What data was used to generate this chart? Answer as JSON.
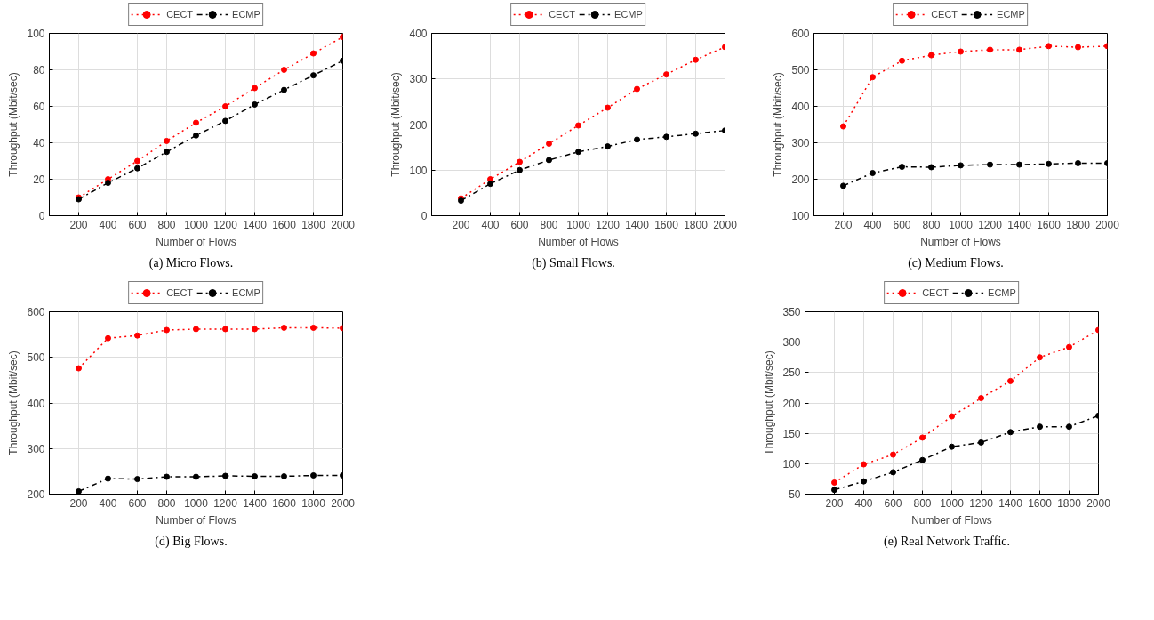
{
  "chart_data": [
    {
      "type": "line",
      "title": "(a) Micro Flows.",
      "xlabel": "Number of Flows",
      "ylabel": "Throughput (Mbit/sec)",
      "x": [
        200,
        400,
        600,
        800,
        1000,
        1200,
        1400,
        1600,
        1800,
        2000
      ],
      "xlim": [
        0,
        2000
      ],
      "xticks": [
        200,
        400,
        600,
        800,
        1000,
        1200,
        1400,
        1600,
        1800,
        2000
      ],
      "ylim": [
        0,
        100
      ],
      "yticks": [
        0,
        20,
        40,
        60,
        80,
        100
      ],
      "grid": true,
      "legend": "top",
      "marker": "circle",
      "series": [
        {
          "name": "CECT",
          "color": "#ff0000",
          "line_style": "dotted",
          "values": [
            10,
            20,
            30,
            41,
            51,
            60,
            70,
            80,
            89,
            98
          ]
        },
        {
          "name": "ECMP",
          "color": "#000000",
          "line_style": "dashdot",
          "values": [
            9,
            18,
            26,
            35,
            44,
            52,
            61,
            69,
            77,
            85
          ]
        }
      ]
    },
    {
      "type": "line",
      "title": "(b) Small Flows.",
      "xlabel": "Number of Flows",
      "ylabel": "Throughput (Mbit/sec)",
      "x": [
        200,
        400,
        600,
        800,
        1000,
        1200,
        1400,
        1600,
        1800,
        2000
      ],
      "xlim": [
        0,
        2000
      ],
      "xticks": [
        200,
        400,
        600,
        800,
        1000,
        1200,
        1400,
        1600,
        1800,
        2000
      ],
      "ylim": [
        0,
        400
      ],
      "yticks": [
        0,
        100,
        200,
        300,
        400
      ],
      "grid": true,
      "legend": "top",
      "marker": "circle",
      "series": [
        {
          "name": "CECT",
          "color": "#ff0000",
          "line_style": "dotted",
          "values": [
            38,
            80,
            118,
            158,
            198,
            237,
            278,
            310,
            342,
            370
          ]
        },
        {
          "name": "ECMP",
          "color": "#000000",
          "line_style": "dashdot",
          "values": [
            33,
            70,
            100,
            122,
            140,
            152,
            167,
            173,
            180,
            187
          ]
        }
      ]
    },
    {
      "type": "line",
      "title": "(c) Medium Flows.",
      "xlabel": "Number of Flows",
      "ylabel": "Throughput (Mbit/sec)",
      "x": [
        200,
        400,
        600,
        800,
        1000,
        1200,
        1400,
        1600,
        1800,
        2000
      ],
      "xlim": [
        0,
        2000
      ],
      "xticks": [
        200,
        400,
        600,
        800,
        1000,
        1200,
        1400,
        1600,
        1800,
        2000
      ],
      "ylim": [
        100,
        600
      ],
      "yticks": [
        100,
        200,
        300,
        400,
        500,
        600
      ],
      "grid": true,
      "legend": "top",
      "marker": "circle",
      "series": [
        {
          "name": "CECT",
          "color": "#ff0000",
          "line_style": "dotted",
          "values": [
            345,
            480,
            525,
            540,
            550,
            555,
            555,
            565,
            562,
            565
          ]
        },
        {
          "name": "ECMP",
          "color": "#000000",
          "line_style": "dashdot",
          "values": [
            182,
            217,
            234,
            233,
            238,
            240,
            240,
            242,
            244,
            244
          ]
        }
      ]
    },
    {
      "type": "line",
      "title": "(d) Big Flows.",
      "xlabel": "Number of Flows",
      "ylabel": "Throughput (Mbit/sec)",
      "x": [
        200,
        400,
        600,
        800,
        1000,
        1200,
        1400,
        1600,
        1800,
        2000
      ],
      "xlim": [
        0,
        2000
      ],
      "xticks": [
        200,
        400,
        600,
        800,
        1000,
        1200,
        1400,
        1600,
        1800,
        2000
      ],
      "ylim": [
        200,
        600
      ],
      "yticks": [
        200,
        300,
        400,
        500,
        600
      ],
      "grid": true,
      "legend": "top",
      "marker": "circle",
      "series": [
        {
          "name": "CECT",
          "color": "#ff0000",
          "line_style": "dotted",
          "values": [
            476,
            542,
            548,
            560,
            562,
            562,
            562,
            565,
            565,
            564
          ]
        },
        {
          "name": "ECMP",
          "color": "#000000",
          "line_style": "dashdot",
          "values": [
            206,
            234,
            233,
            238,
            238,
            240,
            239,
            239,
            241,
            241
          ]
        }
      ]
    },
    {
      "type": "line",
      "title": "(e) Real Network Traffic.",
      "xlabel": "Number of Flows",
      "ylabel": "Throughput (Mbit/sec)",
      "x": [
        200,
        400,
        600,
        800,
        1000,
        1200,
        1400,
        1600,
        1800,
        2000
      ],
      "xlim": [
        0,
        2000
      ],
      "xticks": [
        200,
        400,
        600,
        800,
        1000,
        1200,
        1400,
        1600,
        1800,
        2000
      ],
      "ylim": [
        50,
        350
      ],
      "yticks": [
        50,
        100,
        150,
        200,
        250,
        300,
        350
      ],
      "grid": true,
      "legend": "top",
      "marker": "circle",
      "series": [
        {
          "name": "CECT",
          "color": "#ff0000",
          "line_style": "dotted",
          "values": [
            69,
            99,
            115,
            143,
            178,
            208,
            236,
            275,
            292,
            320
          ]
        },
        {
          "name": "ECMP",
          "color": "#000000",
          "line_style": "dashdot",
          "values": [
            57,
            71,
            86,
            106,
            128,
            135,
            152,
            161,
            161,
            179
          ]
        }
      ]
    }
  ]
}
